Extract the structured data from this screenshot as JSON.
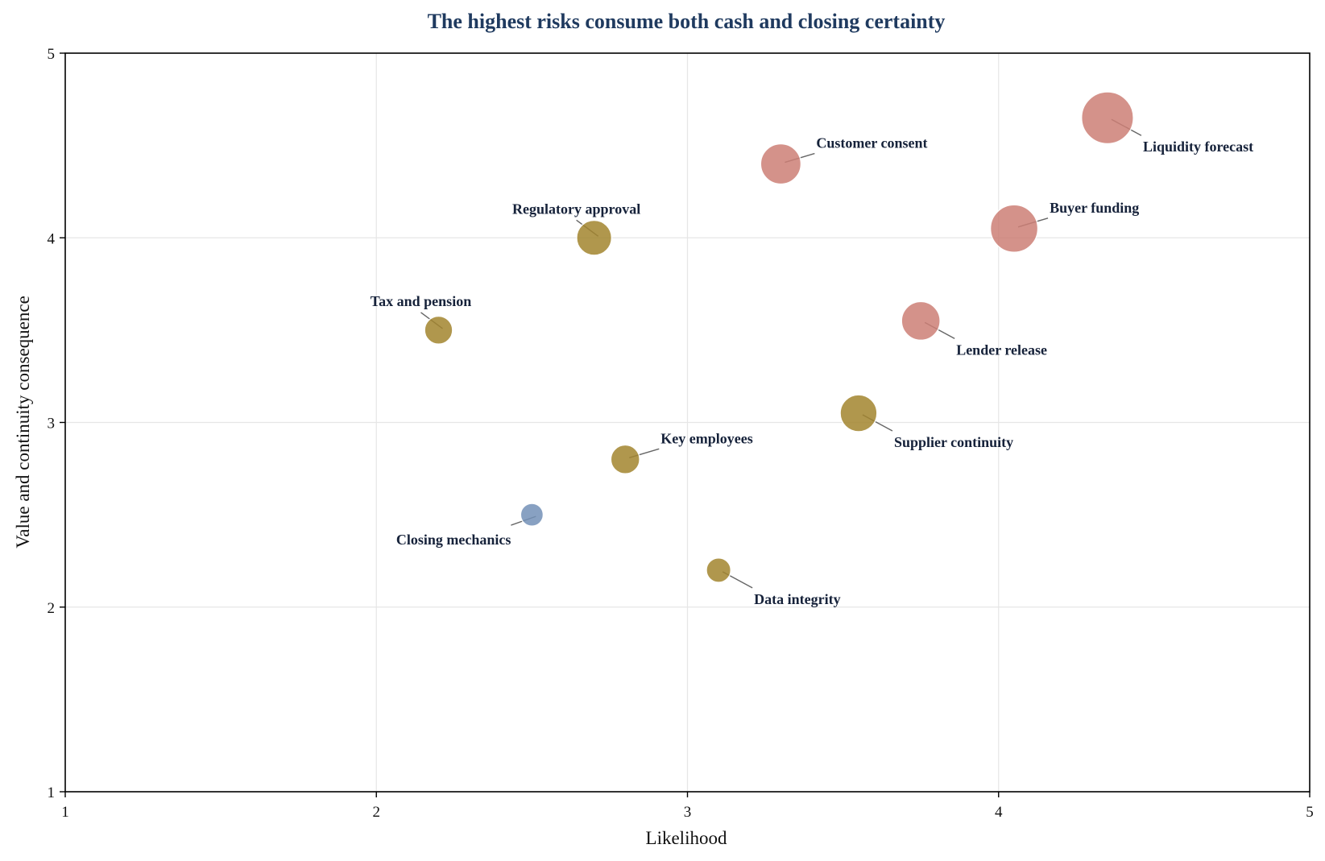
{
  "chart_data": {
    "type": "scatter",
    "title": "The highest risks consume both cash and closing certainty",
    "xlabel": "Likelihood",
    "ylabel": "Value and continuity consequence",
    "xlim": [
      1,
      5
    ],
    "ylim": [
      1,
      5
    ],
    "xticks": [
      "1",
      "2",
      "3",
      "4",
      "5"
    ],
    "yticks": [
      "1",
      "2",
      "3",
      "4",
      "5"
    ],
    "grid": true,
    "colors": {
      "high": "#cd7f76",
      "medium": "#a3852f",
      "low": "#7491b8"
    },
    "points": [
      {
        "label": "Liquidity forecast",
        "x": 4.35,
        "y": 4.65,
        "size": 5.5,
        "tier": "high",
        "label_pos": "below-right"
      },
      {
        "label": "Customer consent",
        "x": 3.3,
        "y": 4.4,
        "size": 4.2,
        "tier": "high",
        "label_pos": "above-right"
      },
      {
        "label": "Buyer funding",
        "x": 4.05,
        "y": 4.05,
        "size": 5.0,
        "tier": "high",
        "label_pos": "above-right"
      },
      {
        "label": "Lender release",
        "x": 3.75,
        "y": 3.55,
        "size": 4.0,
        "tier": "high",
        "label_pos": "below-right"
      },
      {
        "label": "Regulatory approval",
        "x": 2.7,
        "y": 4.0,
        "size": 3.6,
        "tier": "medium",
        "label_pos": "above-left"
      },
      {
        "label": "Tax and pension",
        "x": 2.2,
        "y": 3.5,
        "size": 2.8,
        "tier": "medium",
        "label_pos": "above-left"
      },
      {
        "label": "Supplier continuity",
        "x": 3.55,
        "y": 3.05,
        "size": 3.8,
        "tier": "medium",
        "label_pos": "below-right"
      },
      {
        "label": "Key employees",
        "x": 2.8,
        "y": 2.8,
        "size": 2.9,
        "tier": "medium",
        "label_pos": "above-right"
      },
      {
        "label": "Closing mechanics",
        "x": 2.5,
        "y": 2.5,
        "size": 2.2,
        "tier": "low",
        "label_pos": "below-left"
      },
      {
        "label": "Data integrity",
        "x": 3.1,
        "y": 2.2,
        "size": 2.4,
        "tier": "medium",
        "label_pos": "below-right"
      }
    ]
  }
}
